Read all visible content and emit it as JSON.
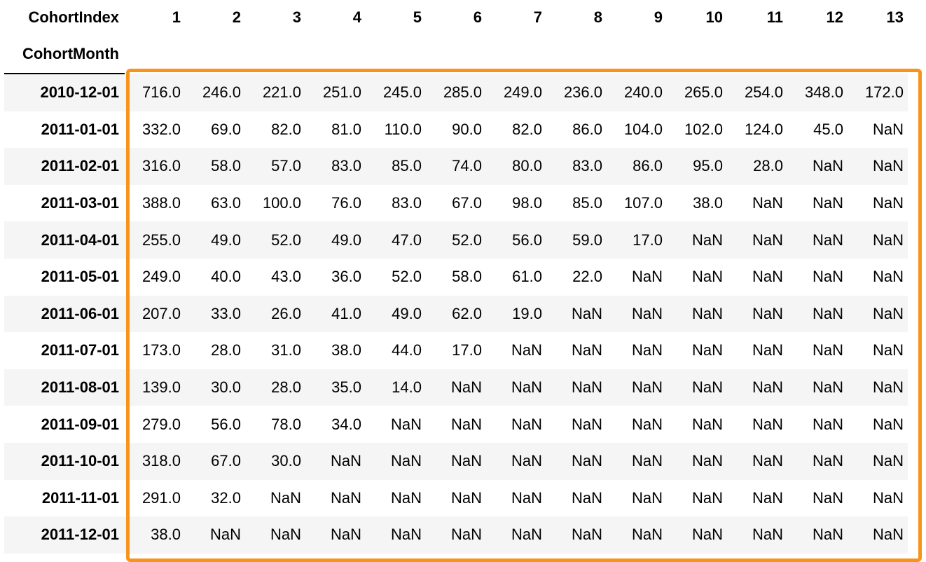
{
  "table": {
    "columns_name": "CohortIndex",
    "index_name": "CohortMonth",
    "columns": [
      "1",
      "2",
      "3",
      "4",
      "5",
      "6",
      "7",
      "8",
      "9",
      "10",
      "11",
      "12",
      "13"
    ],
    "rows": [
      {
        "label": "2010-12-01",
        "values": [
          "716.0",
          "246.0",
          "221.0",
          "251.0",
          "245.0",
          "285.0",
          "249.0",
          "236.0",
          "240.0",
          "265.0",
          "254.0",
          "348.0",
          "172.0"
        ]
      },
      {
        "label": "2011-01-01",
        "values": [
          "332.0",
          "69.0",
          "82.0",
          "81.0",
          "110.0",
          "90.0",
          "82.0",
          "86.0",
          "104.0",
          "102.0",
          "124.0",
          "45.0",
          "NaN"
        ]
      },
      {
        "label": "2011-02-01",
        "values": [
          "316.0",
          "58.0",
          "57.0",
          "83.0",
          "85.0",
          "74.0",
          "80.0",
          "83.0",
          "86.0",
          "95.0",
          "28.0",
          "NaN",
          "NaN"
        ]
      },
      {
        "label": "2011-03-01",
        "values": [
          "388.0",
          "63.0",
          "100.0",
          "76.0",
          "83.0",
          "67.0",
          "98.0",
          "85.0",
          "107.0",
          "38.0",
          "NaN",
          "NaN",
          "NaN"
        ]
      },
      {
        "label": "2011-04-01",
        "values": [
          "255.0",
          "49.0",
          "52.0",
          "49.0",
          "47.0",
          "52.0",
          "56.0",
          "59.0",
          "17.0",
          "NaN",
          "NaN",
          "NaN",
          "NaN"
        ]
      },
      {
        "label": "2011-05-01",
        "values": [
          "249.0",
          "40.0",
          "43.0",
          "36.0",
          "52.0",
          "58.0",
          "61.0",
          "22.0",
          "NaN",
          "NaN",
          "NaN",
          "NaN",
          "NaN"
        ]
      },
      {
        "label": "2011-06-01",
        "values": [
          "207.0",
          "33.0",
          "26.0",
          "41.0",
          "49.0",
          "62.0",
          "19.0",
          "NaN",
          "NaN",
          "NaN",
          "NaN",
          "NaN",
          "NaN"
        ]
      },
      {
        "label": "2011-07-01",
        "values": [
          "173.0",
          "28.0",
          "31.0",
          "38.0",
          "44.0",
          "17.0",
          "NaN",
          "NaN",
          "NaN",
          "NaN",
          "NaN",
          "NaN",
          "NaN"
        ]
      },
      {
        "label": "2011-08-01",
        "values": [
          "139.0",
          "30.0",
          "28.0",
          "35.0",
          "14.0",
          "NaN",
          "NaN",
          "NaN",
          "NaN",
          "NaN",
          "NaN",
          "NaN",
          "NaN"
        ]
      },
      {
        "label": "2011-09-01",
        "values": [
          "279.0",
          "56.0",
          "78.0",
          "34.0",
          "NaN",
          "NaN",
          "NaN",
          "NaN",
          "NaN",
          "NaN",
          "NaN",
          "NaN",
          "NaN"
        ]
      },
      {
        "label": "2011-10-01",
        "values": [
          "318.0",
          "67.0",
          "30.0",
          "NaN",
          "NaN",
          "NaN",
          "NaN",
          "NaN",
          "NaN",
          "NaN",
          "NaN",
          "NaN",
          "NaN"
        ]
      },
      {
        "label": "2011-11-01",
        "values": [
          "291.0",
          "32.0",
          "NaN",
          "NaN",
          "NaN",
          "NaN",
          "NaN",
          "NaN",
          "NaN",
          "NaN",
          "NaN",
          "NaN",
          "NaN"
        ]
      },
      {
        "label": "2011-12-01",
        "values": [
          "38.0",
          "NaN",
          "NaN",
          "NaN",
          "NaN",
          "NaN",
          "NaN",
          "NaN",
          "NaN",
          "NaN",
          "NaN",
          "NaN",
          "NaN"
        ]
      }
    ]
  },
  "highlight": {
    "color": "#f7941d"
  }
}
